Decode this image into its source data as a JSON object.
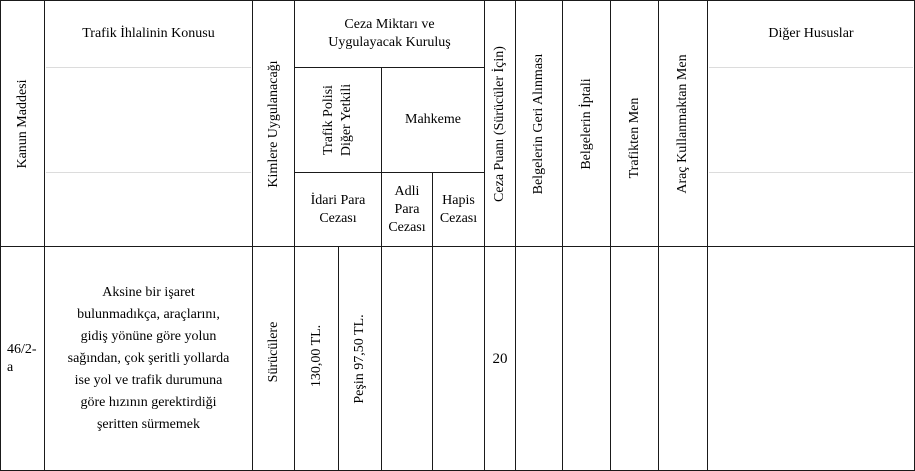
{
  "headers": {
    "kanun_maddesi": "Kanun Maddesi",
    "ihlal_konusu": "Trafik İhlalinin Konusu",
    "kimlere": "Kimlere Uygulanacağı",
    "ceza_miktari_line1": "Ceza Miktarı ve",
    "ceza_miktari_line2": "Uygulayacak Kuruluş",
    "trafik_polisi_line1": "Trafik Polisi",
    "trafik_polisi_line2": "Diğer Yetkili",
    "mahkeme": "Mahkeme",
    "idari_para_line1": "İdari Para",
    "idari_para_line2": "Cezası",
    "adli_para_line1": "Adli",
    "adli_para_line2": "Para",
    "adli_para_line3": "Cezası",
    "hapis_line1": "Hapis",
    "hapis_line2": "Cezası",
    "ceza_puani": "Ceza Puanı (Sürücüler İçin)",
    "belge_geri": "Belgelerin Geri Alınması",
    "belge_iptal": "Belgelerin İptali",
    "trafikten_men": "Trafikten Men",
    "arac_men": "Araç Kullanmaktan Men",
    "diger": "Diğer Hususlar"
  },
  "row": {
    "madde_line1": "46/2-",
    "madde_line2": "a",
    "konu": "Aksine bir işaret\nbulunmadıkça, araçlarını,\ngidiş yönüne göre yolun\nsağından, çok şeritli yollarda\nise yol ve trafik durumuna\ngöre hızının gerektirdiği\nşeritten sürmemek",
    "kimlere": "Sürücülere",
    "idari_para": "130,00 TL.",
    "pesin": "Peşin 97,50 TL.",
    "adli_para": "",
    "hapis": "",
    "ceza_puani": "20",
    "belge_geri": "",
    "belge_iptal": "",
    "trafikten_men": "",
    "arac_men": "",
    "diger": ""
  }
}
